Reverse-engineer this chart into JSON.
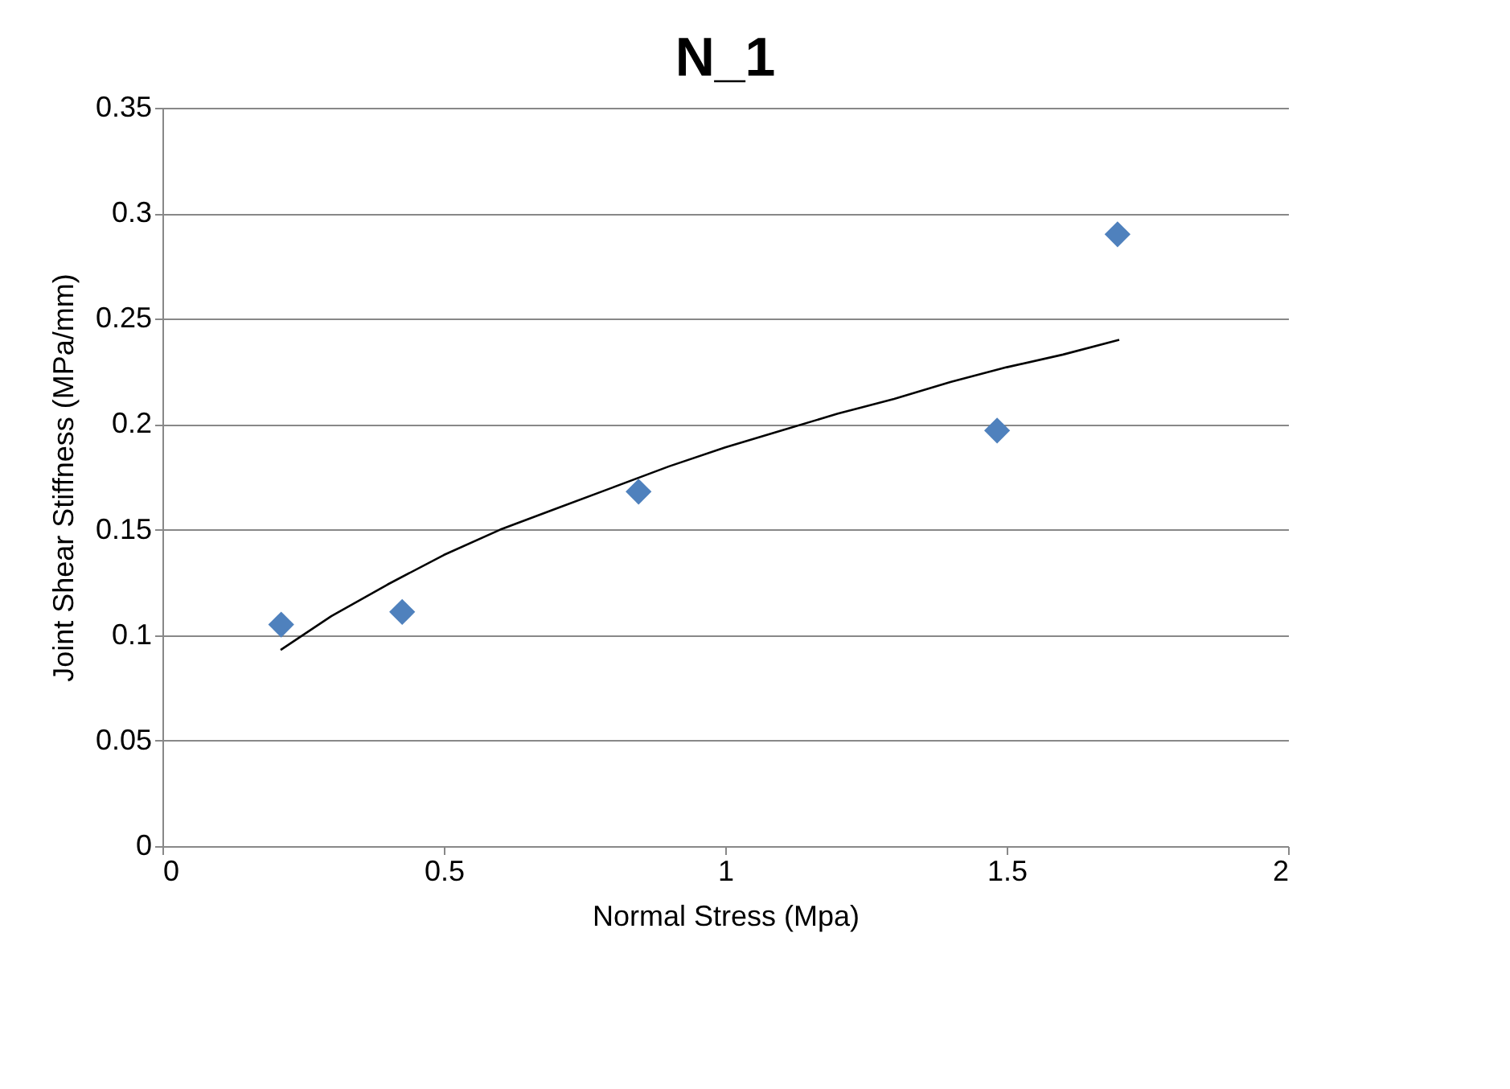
{
  "chart_data": {
    "type": "scatter",
    "title": "N_1",
    "xlabel": "Normal Stress (Mpa)",
    "ylabel": "Joint Shear Stiffness (MPa/mm)",
    "xlim": [
      0,
      2
    ],
    "xticks": [
      0,
      0.5,
      1,
      1.5,
      2
    ],
    "ylim": [
      0,
      0.35
    ],
    "yticks": [
      0,
      0.05,
      0.1,
      0.15,
      0.2,
      0.25,
      0.3,
      0.35
    ],
    "grid": "y",
    "series": [
      {
        "marker": "diamond",
        "color": "#4f81bd",
        "x": [
          0.211,
          0.426,
          0.846,
          1.483,
          1.697
        ],
        "values": [
          0.105,
          0.111,
          0.168,
          0.197,
          0.29
        ]
      },
      {
        "type": "line",
        "marker": "none",
        "line_style": "solid",
        "color": "#000000",
        "x": [
          0.21,
          0.3,
          0.4,
          0.5,
          0.6,
          0.7,
          0.8,
          0.9,
          1.0,
          1.1,
          1.2,
          1.3,
          1.4,
          1.5,
          1.6,
          1.7
        ],
        "values": [
          0.093,
          0.109,
          0.124,
          0.138,
          0.15,
          0.16,
          0.17,
          0.18,
          0.189,
          0.197,
          0.205,
          0.212,
          0.22,
          0.227,
          0.233,
          0.24
        ]
      }
    ]
  }
}
